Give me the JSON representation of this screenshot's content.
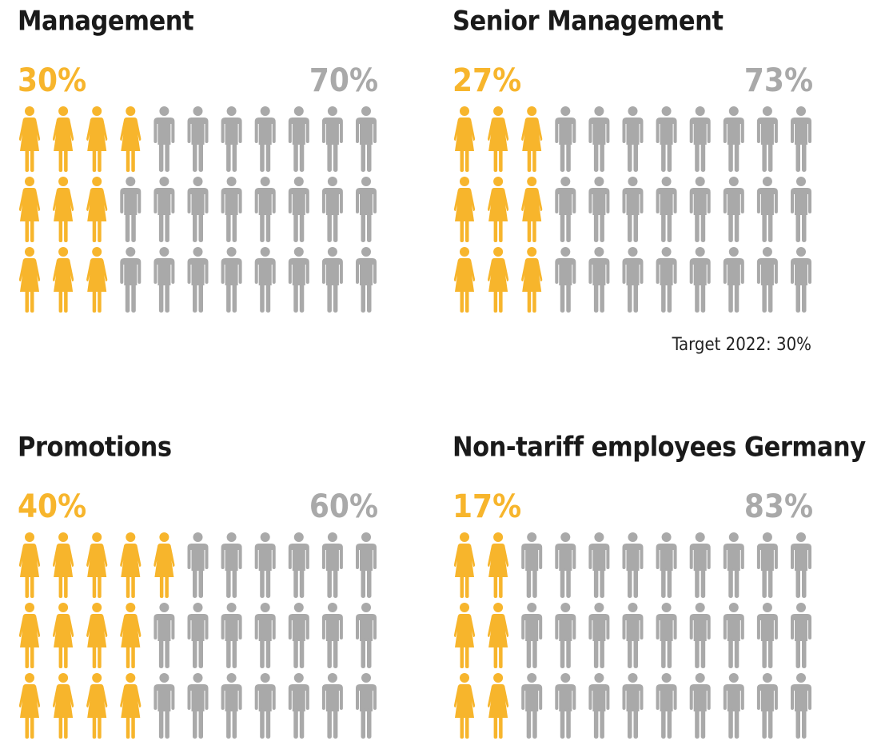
{
  "chart_data": [
    {
      "type": "pictogram",
      "title": "Management",
      "values": [
        30,
        70
      ],
      "value_labels": [
        "30%",
        "70%"
      ],
      "colors": [
        "#f7b52c",
        "#a9a9a9"
      ]
    },
    {
      "type": "pictogram",
      "title": "Senior Management",
      "values": [
        27,
        73
      ],
      "value_labels": [
        "27%",
        "73%"
      ],
      "colors": [
        "#f7b52c",
        "#a9a9a9"
      ],
      "annotation": "Target 2022: 30%"
    },
    {
      "type": "pictogram",
      "title": "Promotions",
      "values": [
        40,
        60
      ],
      "value_labels": [
        "40%",
        "60%"
      ],
      "colors": [
        "#f7b52c",
        "#a9a9a9"
      ]
    },
    {
      "type": "pictogram",
      "title": "Non-tariff employees Germany",
      "values": [
        17,
        83
      ],
      "value_labels": [
        "17%",
        "83%"
      ],
      "colors": [
        "#f7b52c",
        "#a9a9a9"
      ]
    }
  ]
}
